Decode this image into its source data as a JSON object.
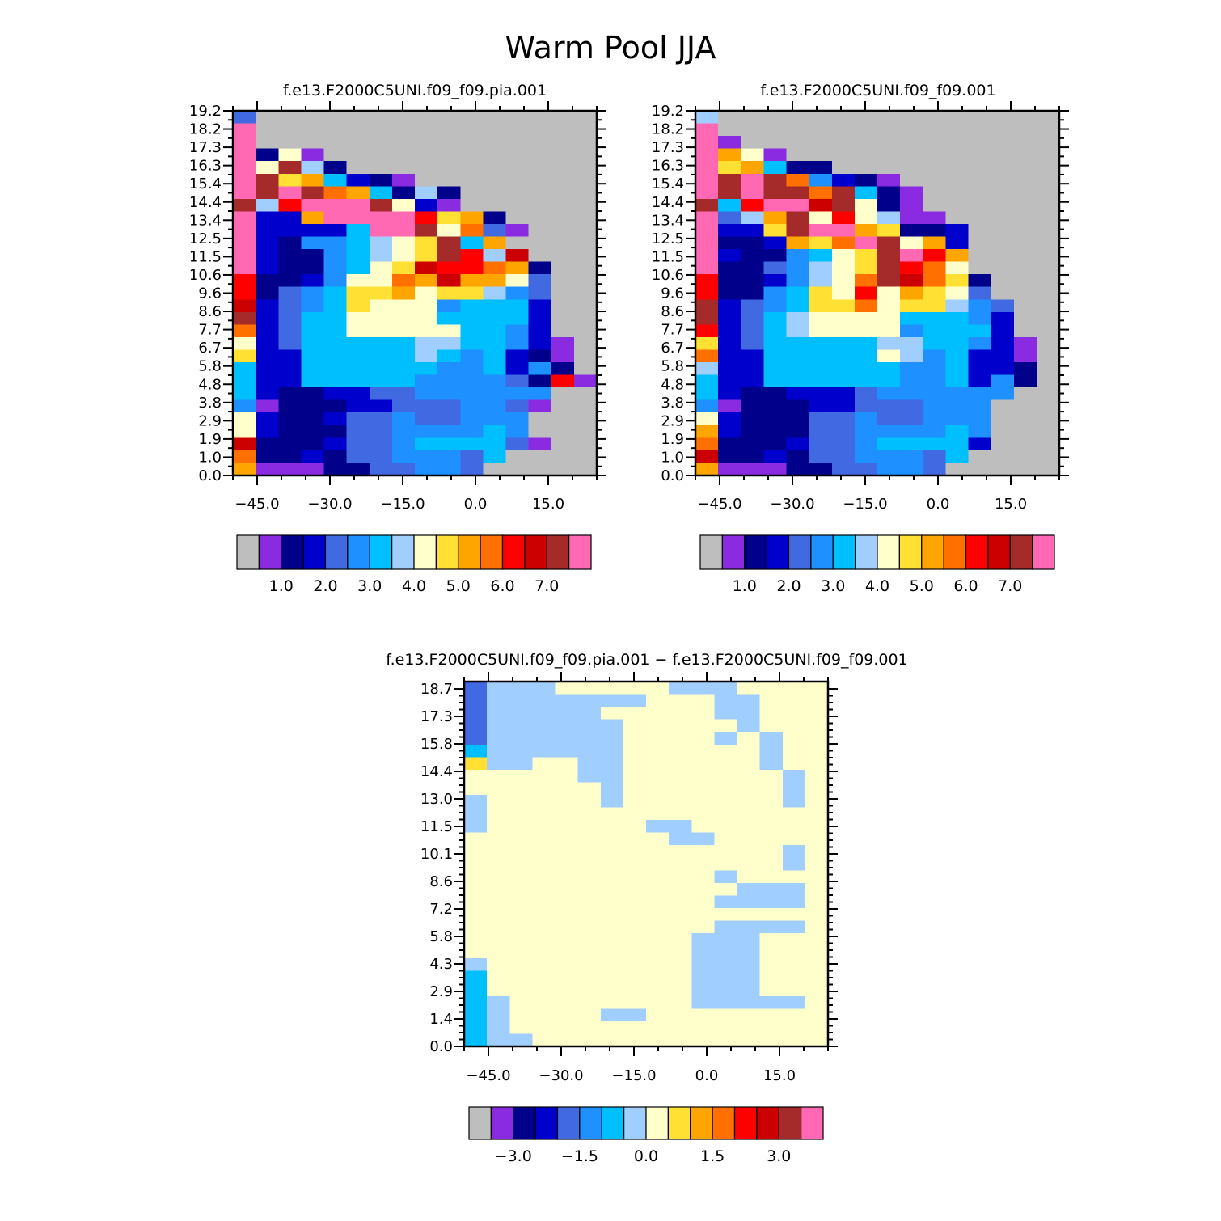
{
  "figure": {
    "title": "Warm Pool JJA"
  },
  "colors": {
    "palette": [
      "#bebebe",
      "#8a2be2",
      "#00008b",
      "#0000cd",
      "#4169e1",
      "#1e90ff",
      "#00bfff",
      "#a0cfff",
      "#ffffcc",
      "#ffe033",
      "#ffa500",
      "#ff7000",
      "#ff0000",
      "#cc0000",
      "#a52a2a",
      "#ff69b4"
    ],
    "missing": "#bebebe"
  },
  "chart_data": [
    {
      "type": "heatmap",
      "title": "f.e13.F2000C5UNI.f09_f09.pia.001",
      "x_ticks": [
        "−45.0",
        "−30.0",
        "−15.0",
        "0.0",
        "15.0"
      ],
      "y_ticks": [
        "0.0",
        "1.0",
        "1.9",
        "2.9",
        "3.8",
        "4.8",
        "5.8",
        "6.7",
        "7.7",
        "8.6",
        "9.6",
        "10.6",
        "11.5",
        "12.5",
        "13.4",
        "14.4",
        "15.4",
        "16.3",
        "17.3",
        "18.2",
        "19.2"
      ],
      "xlim": [
        -50,
        25
      ],
      "ylim": [
        0,
        19.2
      ],
      "grid_rows_top_to_bottom": [
        "4000000000000000",
        "F000000000000000",
        "F000000000000000",
        "F281000000000000",
        "F8E7200000000000",
        "FE9A632100000000",
        "FEFEBA6272000000",
        "E7CFFFE831000000",
        "F33AFFFFC9A20000",
        "F33336FFE8B41000",
        "F32556789E6A0000",
        "F32256789EC7D000",
        "F3225689DCCBA200",
        "C223588BADAA8400",
        "C245699A89975400",
        "D345698885666300",
        "E346688886666300",
        "B346688888665300",
        "8346666677665310",
        "9336666676563210",
        "6336666665563520",
        "63366666555542C1",
        "6322334455555500",
        "5122233444554100",
        "8322344544555000",
        "8322244555565000",
        "D222344566664100",
        "B223244555460000",
        "A111224455400000"
      ],
      "colorbar_labels": [
        "1.0",
        "2.0",
        "3.0",
        "4.0",
        "5.0",
        "6.0",
        "7.0"
      ]
    },
    {
      "type": "heatmap",
      "title": "f.e13.F2000C5UNI.f09_f09.001",
      "x_ticks": [
        "−45.0",
        "−30.0",
        "−15.0",
        "0.0",
        "15.0"
      ],
      "y_ticks": [
        "0.0",
        "1.0",
        "1.9",
        "2.9",
        "3.8",
        "4.8",
        "5.8",
        "6.7",
        "7.7",
        "8.6",
        "9.6",
        "10.6",
        "11.5",
        "12.5",
        "13.4",
        "14.4",
        "15.4",
        "16.3",
        "17.3",
        "18.2",
        "19.2"
      ],
      "xlim": [
        -50,
        25
      ],
      "ylim": [
        0,
        19.2
      ],
      "grid_rows_top_to_bottom": [
        "7000000000000000",
        "F000000000000000",
        "F100000000000000",
        "FA81000000000000",
        "F9A6220000000000",
        "FEFEB53210000000",
        "FEFEEBE621000000",
        "E6CFFDE821000000",
        "F47AE8C871100000",
        "F339EFFA92230000",
        "F223A9BFE8A30000",
        "F3225689EFCA0000",
        "F2245789ECB80000",
        "C223578BEDB92000",
        "C225698C8A984000",
        "E345699B89975400",
        "E346788886665300",
        "C346788885666300",
        "9346666677665310",
        "B336666687563310",
        "7336666665563320",
        "6336666665563520",
        "6322333455555500",
        "5122233444555000",
        "8322244544555000",
        "A322244555565000",
        "B222344566663000",
        "D223244555460000",
        "A111224455400000"
      ],
      "colorbar_labels": [
        "1.0",
        "2.0",
        "3.0",
        "4.0",
        "5.0",
        "6.0",
        "7.0"
      ]
    },
    {
      "type": "heatmap",
      "title": "f.e13.F2000C5UNI.f09_f09.pia.001 − f.e13.F2000C5UNI.f09_f09.001",
      "x_ticks": [
        "−45.0",
        "−30.0",
        "−15.0",
        "0.0",
        "15.0"
      ],
      "y_ticks": [
        "0.0",
        "1.4",
        "2.9",
        "4.3",
        "5.8",
        "7.2",
        "8.6",
        "10.1",
        "11.5",
        "13.0",
        "14.4",
        "15.8",
        "17.3",
        "18.7"
      ],
      "xlim": [
        -50,
        25
      ],
      "ylim": [
        0,
        19.2
      ],
      "grid_rows_top_to_bottom": [
        "4777888887778888",
        "4777777788877888",
        "4777778888877888",
        "4777777888887888",
        "4777777888878788",
        "6777777888888788",
        "9778877888888788",
        "8888877888888878",
        "8888887888888878",
        "7888887888888878",
        "7888888888888888",
        "7888888877888888",
        "8888888887788888",
        "8888888888888878",
        "8888888888888878",
        "8888888888878888",
        "8888888888887778",
        "8888888888877778",
        "8888888888888888",
        "8888888888877778",
        "8888888888777888",
        "8888888888777888",
        "7888888888777888",
        "6888888888777888",
        "6888888888777888",
        "6788888888777778",
        "6788887788888888",
        "6788888888888888",
        "6778888888888888"
      ],
      "colorbar_labels": [
        "−3.0",
        "−1.5",
        "0.0",
        "1.5",
        "3.0"
      ]
    }
  ]
}
